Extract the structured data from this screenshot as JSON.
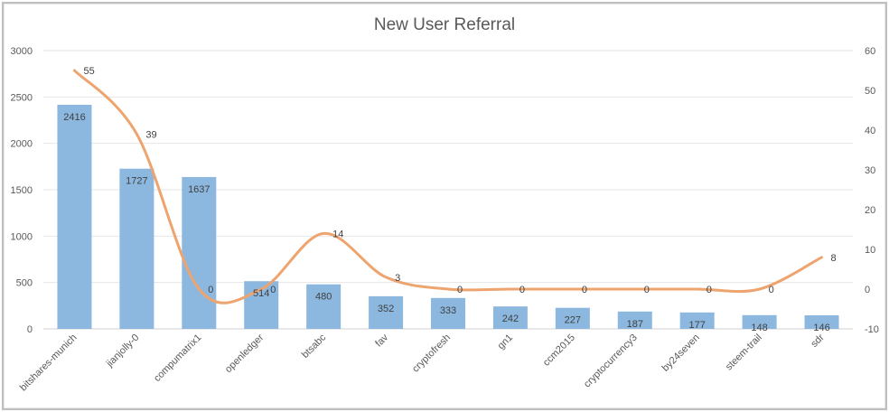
{
  "chart_data": {
    "type": "bar",
    "title": "New User Referral",
    "categories": [
      "bitshares-munich",
      "jianjolly-0",
      "compumatrix1",
      "openledger",
      "btsabc",
      "fav",
      "cryptofresh",
      "gn1",
      "ccm2015",
      "cryptocurrency3",
      "by24seven",
      "steem-trail",
      "sdr"
    ],
    "series": [
      {
        "kind": "bar",
        "axis": "left",
        "color": "#8cb8e0",
        "values": [
          2416,
          1727,
          1637,
          514,
          480,
          352,
          333,
          242,
          227,
          187,
          177,
          148,
          146
        ]
      },
      {
        "kind": "line",
        "axis": "right",
        "smooth": true,
        "color": "#eda46e",
        "values": [
          55,
          39,
          0,
          0,
          14,
          3,
          0,
          0,
          0,
          0,
          0,
          0,
          8
        ]
      }
    ],
    "ylim_left": [
      0,
      3000
    ],
    "yticks_left": [
      0,
      500,
      1000,
      1500,
      2000,
      2500,
      3000
    ],
    "ylim_right": [
      -10,
      60
    ],
    "yticks_right": [
      -10,
      0,
      10,
      20,
      30,
      40,
      50,
      60
    ],
    "grid": true,
    "legend": "none"
  }
}
